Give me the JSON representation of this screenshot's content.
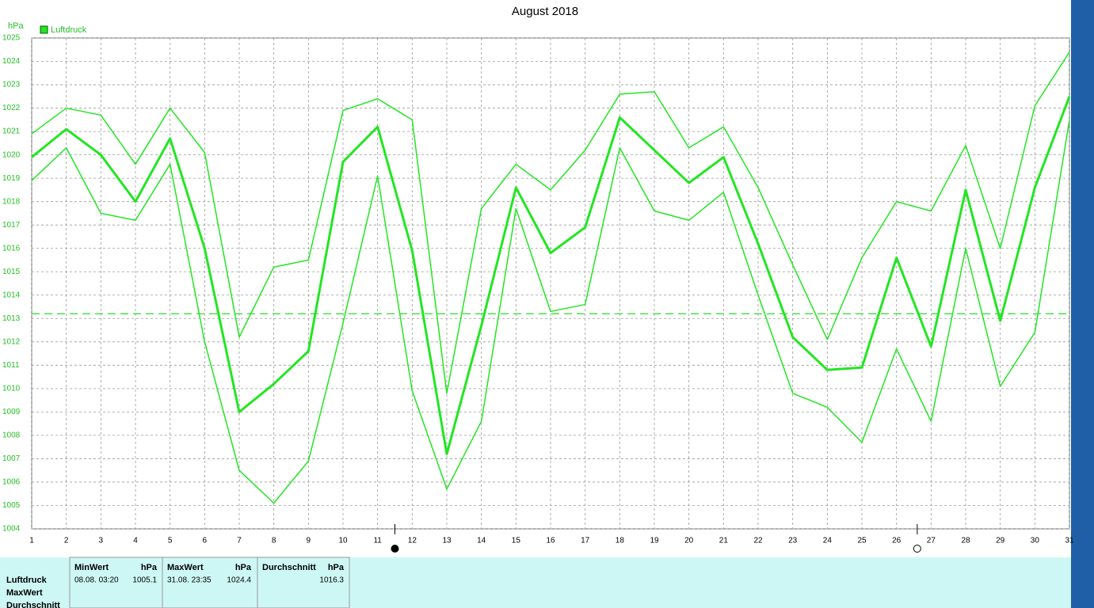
{
  "chart_data": {
    "type": "line",
    "title": "August 2018",
    "y_unit": "hPa",
    "legend_label": "Luftdruck",
    "legend_color": "#22e622",
    "x": [
      1,
      2,
      3,
      4,
      5,
      6,
      7,
      8,
      9,
      10,
      11,
      12,
      13,
      14,
      15,
      16,
      17,
      18,
      19,
      20,
      21,
      22,
      23,
      24,
      25,
      26,
      27,
      28,
      29,
      30,
      31
    ],
    "xlim": [
      1,
      31
    ],
    "xticks": [
      1,
      2,
      3,
      4,
      5,
      6,
      7,
      8,
      9,
      10,
      11,
      12,
      13,
      14,
      15,
      16,
      17,
      18,
      19,
      20,
      21,
      22,
      23,
      24,
      25,
      26,
      27,
      28,
      29,
      30,
      31
    ],
    "ylim": [
      1004,
      1025
    ],
    "yticks": [
      1004,
      1005,
      1006,
      1007,
      1008,
      1009,
      1010,
      1011,
      1012,
      1013,
      1014,
      1015,
      1016,
      1017,
      1018,
      1019,
      1020,
      1021,
      1022,
      1023,
      1024,
      1025
    ],
    "grid": true,
    "reference_line": 1013.2,
    "series": [
      {
        "color": "#22e622",
        "width": 1.5,
        "values": [
          1020.9,
          1022.0,
          1021.7,
          1019.6,
          1022.0,
          1020.1,
          1012.2,
          1015.2,
          1015.5,
          1021.9,
          1022.4,
          1021.5,
          1009.8,
          1017.7,
          1019.6,
          1018.5,
          1020.2,
          1022.6,
          1022.7,
          1020.3,
          1021.2,
          1018.6,
          1015.3,
          1012.1,
          1015.6,
          1018.0,
          1017.6,
          1020.4,
          1016.0,
          1022.1,
          1024.4
        ]
      },
      {
        "color": "#22e622",
        "width": 3,
        "values": [
          1019.9,
          1021.1,
          1020.0,
          1018.0,
          1020.7,
          1016.0,
          1009.0,
          1010.2,
          1011.6,
          1019.7,
          1021.2,
          1015.9,
          1007.2,
          1012.7,
          1018.6,
          1015.8,
          1016.9,
          1021.6,
          1020.2,
          1018.8,
          1019.9,
          1016.2,
          1012.2,
          1010.8,
          1010.9,
          1015.6,
          1011.8,
          1018.5,
          1012.9,
          1018.6,
          1022.5
        ]
      },
      {
        "color": "#22e622",
        "width": 1.5,
        "values": [
          1018.9,
          1020.3,
          1017.5,
          1017.2,
          1019.6,
          1012.0,
          1006.5,
          1005.1,
          1006.9,
          1012.8,
          1019.1,
          1009.9,
          1005.7,
          1008.6,
          1017.7,
          1013.3,
          1013.6,
          1020.3,
          1017.6,
          1017.2,
          1018.4,
          1014.0,
          1009.8,
          1009.2,
          1007.7,
          1011.7,
          1008.6,
          1016.0,
          1010.1,
          1012.4,
          1021.5
        ]
      }
    ],
    "moon_phases": [
      {
        "x": 11.5,
        "filled": true
      },
      {
        "x": 26.6,
        "filled": false
      }
    ]
  },
  "table": {
    "row_labels": [
      "Luftdruck",
      "MaxWert",
      "Durchschnitt"
    ],
    "columns": [
      {
        "header": "MinWert",
        "unit": "hPa",
        "time": "08.08.  03:20",
        "value": 1005.1
      },
      {
        "header": "MaxWert",
        "unit": "hPa",
        "time": "31.08.  23:35",
        "value": 1024.4
      },
      {
        "header": "Durchschnitt",
        "unit": "hPa",
        "value": 1016.3
      }
    ]
  }
}
